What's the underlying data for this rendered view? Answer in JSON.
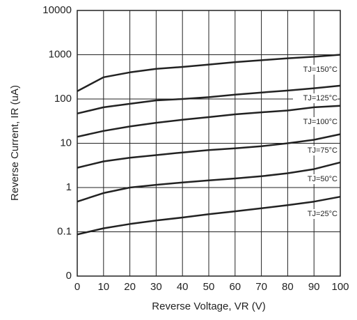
{
  "chart_data": {
    "type": "line",
    "x_label": "Reverse Voltage, VR (V)",
    "y_label": "Reverse Current, IR (uA)",
    "x": [
      0,
      10,
      20,
      30,
      40,
      50,
      60,
      70,
      80,
      90,
      100
    ],
    "xlim": [
      0,
      100
    ],
    "xticks": [
      0,
      10,
      20,
      30,
      40,
      50,
      60,
      70,
      80,
      90,
      100
    ],
    "ylim": [
      0.01,
      10000
    ],
    "log_y": true,
    "yticks": [
      {
        "value": 0.01,
        "label": "0"
      },
      0.1,
      1,
      10,
      100,
      1000,
      10000
    ],
    "grid": true,
    "series": [
      {
        "name": "TJ=150°C",
        "color": "#222222",
        "values": [
          150,
          310,
          400,
          480,
          530,
          600,
          680,
          750,
          830,
          900,
          1000
        ]
      },
      {
        "name": "TJ=125°C",
        "color": "#222222",
        "values": [
          47,
          65,
          78,
          93,
          100,
          110,
          125,
          140,
          155,
          175,
          200
        ]
      },
      {
        "name": "TJ=100°C",
        "color": "#222222",
        "values": [
          14,
          19,
          24,
          29,
          34,
          39,
          45,
          50,
          55,
          65,
          70
        ]
      },
      {
        "name": "TJ=75°C",
        "color": "#222222",
        "values": [
          2.8,
          3.9,
          4.7,
          5.4,
          6.2,
          7,
          7.7,
          8.6,
          10,
          12,
          16
        ]
      },
      {
        "name": "TJ=50°C",
        "color": "#222222",
        "values": [
          0.48,
          0.75,
          1.0,
          1.15,
          1.3,
          1.45,
          1.6,
          1.8,
          2.1,
          2.6,
          3.7
        ]
      },
      {
        "name": "TJ=25°C",
        "color": "#222222",
        "values": [
          0.087,
          0.12,
          0.15,
          0.18,
          0.21,
          0.25,
          0.29,
          0.34,
          0.4,
          0.48,
          0.62
        ]
      }
    ]
  }
}
